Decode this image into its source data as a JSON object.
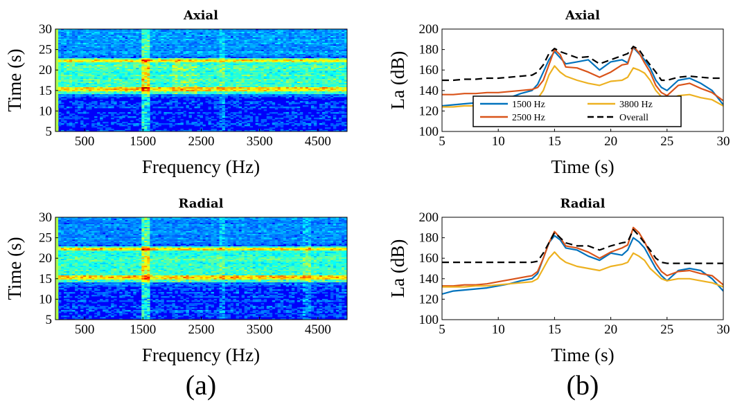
{
  "figure": {
    "subfigure_labels": [
      "(a)",
      "(b)"
    ]
  },
  "colors": {
    "1500 Hz": "#0072BD",
    "2500 Hz": "#D95319",
    "3800 Hz": "#EDB120",
    "Overall": "#000000"
  },
  "chart_data": [
    {
      "type": "heatmap",
      "title": "Axial",
      "xlabel": "Frequency (Hz)",
      "ylabel": "Time (s)",
      "xlim": [
        0,
        5000
      ],
      "ylim": [
        5,
        30
      ],
      "xticks": [
        500,
        1500,
        2500,
        3500,
        4500
      ],
      "yticks": [
        5,
        10,
        15,
        20,
        25,
        30
      ],
      "colormap": "jet",
      "grid": false
    },
    {
      "type": "line",
      "title": "Axial",
      "xlabel": "Time (s)",
      "ylabel": "La (dB)",
      "xlim": [
        5,
        30
      ],
      "ylim": [
        100,
        200
      ],
      "xticks": [
        5,
        10,
        15,
        20,
        25,
        30
      ],
      "yticks": [
        100,
        120,
        140,
        160,
        180,
        200
      ],
      "legend_position": "bottom-center",
      "grid": false,
      "x": [
        5,
        6,
        7,
        8,
        9,
        10,
        11,
        12,
        13,
        13.5,
        14,
        14.5,
        15,
        15.5,
        16,
        17,
        18,
        19,
        20,
        21,
        21.5,
        22,
        22.5,
        23,
        23.5,
        24,
        24.5,
        25,
        26,
        27,
        28,
        29,
        30
      ],
      "series": [
        {
          "name": "1500 Hz",
          "values": [
            125,
            126,
            127,
            128,
            130,
            131,
            133,
            137,
            140,
            146,
            158,
            170,
            178,
            172,
            166,
            168,
            170,
            160,
            168,
            170,
            167,
            182,
            176,
            170,
            162,
            150,
            143,
            140,
            150,
            152,
            147,
            140,
            126
          ]
        },
        {
          "name": "2500 Hz",
          "values": [
            136,
            136,
            137,
            137,
            138,
            138,
            139,
            140,
            141,
            143,
            150,
            165,
            180,
            175,
            163,
            162,
            158,
            153,
            158,
            165,
            166,
            183,
            177,
            167,
            158,
            145,
            138,
            135,
            145,
            147,
            142,
            138,
            130
          ]
        },
        {
          "name": "3800 Hz",
          "values": [
            124,
            124,
            125,
            125,
            126,
            127,
            128,
            129,
            130,
            132,
            140,
            155,
            164,
            158,
            154,
            150,
            147,
            145,
            149,
            150,
            153,
            162,
            160,
            157,
            150,
            140,
            134,
            130,
            135,
            136,
            133,
            131,
            125
          ]
        },
        {
          "name": "Overall",
          "values": [
            150,
            150,
            151,
            151,
            152,
            152,
            153,
            154,
            155,
            158,
            165,
            176,
            181,
            178,
            176,
            172,
            173,
            166,
            170,
            174,
            176,
            183,
            180,
            172,
            165,
            158,
            150,
            150,
            153,
            154,
            153,
            152,
            152
          ]
        }
      ]
    },
    {
      "type": "heatmap",
      "title": "Radial",
      "xlabel": "Frequency (Hz)",
      "ylabel": "Time (s)",
      "xlim": [
        0,
        5000
      ],
      "ylim": [
        5,
        30
      ],
      "xticks": [
        500,
        1500,
        2500,
        3500,
        4500
      ],
      "yticks": [
        5,
        10,
        15,
        20,
        25,
        30
      ],
      "colormap": "jet",
      "grid": false
    },
    {
      "type": "line",
      "title": "Radial",
      "xlabel": "Time (s)",
      "ylabel": "La (dB)",
      "xlim": [
        5,
        30
      ],
      "ylim": [
        100,
        200
      ],
      "xticks": [
        5,
        10,
        15,
        20,
        25,
        30
      ],
      "yticks": [
        100,
        120,
        140,
        160,
        180,
        200
      ],
      "grid": false,
      "x": [
        5,
        6,
        7,
        8,
        9,
        10,
        11,
        12,
        13,
        13.5,
        14,
        14.5,
        15,
        15.5,
        16,
        17,
        18,
        19,
        20,
        21,
        21.5,
        22,
        22.5,
        23,
        23.5,
        24,
        24.5,
        25,
        26,
        27,
        28,
        29,
        30
      ],
      "series": [
        {
          "name": "1500 Hz",
          "values": [
            125,
            128,
            129,
            130,
            131,
            133,
            135,
            138,
            140,
            145,
            160,
            175,
            182,
            178,
            170,
            168,
            162,
            158,
            165,
            163,
            168,
            180,
            176,
            170,
            160,
            150,
            143,
            138,
            148,
            150,
            148,
            140,
            128
          ]
        },
        {
          "name": "2500 Hz",
          "values": [
            133,
            133,
            134,
            134,
            135,
            137,
            139,
            141,
            143,
            147,
            160,
            175,
            186,
            180,
            172,
            170,
            166,
            160,
            166,
            170,
            173,
            190,
            185,
            176,
            165,
            155,
            147,
            143,
            147,
            148,
            145,
            143,
            134
          ]
        },
        {
          "name": "3800 Hz",
          "values": [
            132,
            132,
            132,
            133,
            133,
            134,
            135,
            136,
            137,
            140,
            150,
            160,
            166,
            160,
            156,
            152,
            150,
            148,
            152,
            154,
            156,
            165,
            162,
            158,
            150,
            145,
            140,
            138,
            140,
            140,
            138,
            136,
            132
          ]
        },
        {
          "name": "Overall",
          "values": [
            156,
            156,
            156,
            156,
            156,
            156,
            156,
            156,
            156,
            157,
            165,
            175,
            185,
            180,
            175,
            172,
            172,
            168,
            172,
            175,
            176,
            188,
            182,
            175,
            168,
            160,
            156,
            155,
            155,
            155,
            155,
            155,
            155
          ]
        }
      ]
    }
  ]
}
